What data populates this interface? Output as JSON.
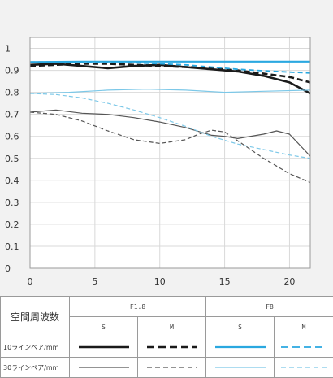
{
  "chart_data": {
    "type": "line",
    "x_ticks": [
      "0",
      "5",
      "10",
      "15",
      "20"
    ],
    "y_ticks": [
      "0",
      "0.1",
      "0.2",
      "0.3",
      "0.4",
      "0.5",
      "0.6",
      "0.7",
      "0.8",
      "0.9",
      "1"
    ],
    "xlim": [
      0,
      21.6
    ],
    "ylim": [
      0,
      1.05
    ],
    "grid": true,
    "series": [
      {
        "aperture": "F1.8",
        "mode": "S",
        "freq": "10",
        "color": "#1a1a1a",
        "dash": "",
        "width": 2.6,
        "points": [
          [
            0,
            0.925
          ],
          [
            2,
            0.93
          ],
          [
            4,
            0.92
          ],
          [
            6,
            0.91
          ],
          [
            8,
            0.92
          ],
          [
            10,
            0.925
          ],
          [
            12,
            0.915
          ],
          [
            14,
            0.905
          ],
          [
            16,
            0.895
          ],
          [
            18,
            0.875
          ],
          [
            20,
            0.845
          ],
          [
            21.6,
            0.795
          ]
        ]
      },
      {
        "aperture": "F1.8",
        "mode": "M",
        "freq": "10",
        "color": "#1a1a1a",
        "dash": "7,4",
        "width": 2.6,
        "points": [
          [
            0,
            0.92
          ],
          [
            2,
            0.925
          ],
          [
            4,
            0.93
          ],
          [
            6,
            0.93
          ],
          [
            8,
            0.925
          ],
          [
            10,
            0.92
          ],
          [
            12,
            0.915
          ],
          [
            14,
            0.91
          ],
          [
            16,
            0.9
          ],
          [
            18,
            0.885
          ],
          [
            20,
            0.87
          ],
          [
            21.6,
            0.845
          ]
        ]
      },
      {
        "aperture": "F8",
        "mode": "S",
        "freq": "10",
        "color": "#2aa8e0",
        "dash": "",
        "width": 2.2,
        "points": [
          [
            0,
            0.938
          ],
          [
            4,
            0.94
          ],
          [
            8,
            0.94
          ],
          [
            12,
            0.94
          ],
          [
            16,
            0.94
          ],
          [
            20,
            0.94
          ],
          [
            21.6,
            0.94
          ]
        ]
      },
      {
        "aperture": "F8",
        "mode": "M",
        "freq": "10",
        "color": "#2aa8e0",
        "dash": "6,4",
        "width": 1.8,
        "points": [
          [
            0,
            0.938
          ],
          [
            4,
            0.938
          ],
          [
            8,
            0.935
          ],
          [
            12,
            0.925
          ],
          [
            14,
            0.915
          ],
          [
            16,
            0.905
          ],
          [
            18,
            0.898
          ],
          [
            20,
            0.892
          ],
          [
            21.6,
            0.888
          ]
        ]
      },
      {
        "aperture": "F1.8",
        "mode": "S",
        "freq": "30",
        "color": "#555555",
        "dash": "",
        "width": 1.2,
        "points": [
          [
            0,
            0.71
          ],
          [
            2,
            0.72
          ],
          [
            4,
            0.705
          ],
          [
            6,
            0.7
          ],
          [
            8,
            0.685
          ],
          [
            10,
            0.665
          ],
          [
            12,
            0.64
          ],
          [
            14,
            0.605
          ],
          [
            15,
            0.6
          ],
          [
            16,
            0.59
          ],
          [
            18,
            0.61
          ],
          [
            19,
            0.625
          ],
          [
            20,
            0.61
          ],
          [
            21.6,
            0.51
          ]
        ]
      },
      {
        "aperture": "F1.8",
        "mode": "M",
        "freq": "30",
        "color": "#555555",
        "dash": "5,3",
        "width": 1.2,
        "points": [
          [
            0,
            0.71
          ],
          [
            2,
            0.7
          ],
          [
            4,
            0.67
          ],
          [
            6,
            0.625
          ],
          [
            8,
            0.585
          ],
          [
            10,
            0.568
          ],
          [
            12,
            0.585
          ],
          [
            13,
            0.61
          ],
          [
            14,
            0.628
          ],
          [
            15,
            0.62
          ],
          [
            16,
            0.58
          ],
          [
            18,
            0.5
          ],
          [
            20,
            0.43
          ],
          [
            21.6,
            0.39
          ]
        ]
      },
      {
        "aperture": "F8",
        "mode": "S",
        "freq": "30",
        "color": "#7cc8e8",
        "dash": "",
        "width": 1.2,
        "points": [
          [
            0,
            0.795
          ],
          [
            3,
            0.8
          ],
          [
            6,
            0.81
          ],
          [
            9,
            0.815
          ],
          [
            12,
            0.81
          ],
          [
            15,
            0.8
          ],
          [
            18,
            0.805
          ],
          [
            21.6,
            0.81
          ]
        ]
      },
      {
        "aperture": "F8",
        "mode": "M",
        "freq": "30",
        "color": "#7cc8e8",
        "dash": "5,3",
        "width": 1.2,
        "points": [
          [
            0,
            0.795
          ],
          [
            2,
            0.79
          ],
          [
            4,
            0.775
          ],
          [
            6,
            0.75
          ],
          [
            8,
            0.72
          ],
          [
            10,
            0.685
          ],
          [
            12,
            0.645
          ],
          [
            14,
            0.6
          ],
          [
            16,
            0.565
          ],
          [
            18,
            0.54
          ],
          [
            20,
            0.515
          ],
          [
            21.6,
            0.5
          ]
        ]
      }
    ]
  },
  "legend": {
    "title": "空間周波数",
    "apertures": [
      "F1.8",
      "F8"
    ],
    "modes": [
      "S",
      "M",
      "S",
      "M"
    ],
    "rows": [
      {
        "label": "10ラインペア/mm",
        "samples": [
          {
            "color": "#1a1a1a",
            "dash": "",
            "width": 2.6
          },
          {
            "color": "#1a1a1a",
            "dash": "9,5",
            "width": 2.6
          },
          {
            "color": "#2aa8e0",
            "dash": "",
            "width": 2.2
          },
          {
            "color": "#2aa8e0",
            "dash": "9,5",
            "width": 1.8
          }
        ]
      },
      {
        "label": "30ラインペア/mm",
        "samples": [
          {
            "color": "#555555",
            "dash": "",
            "width": 1.2
          },
          {
            "color": "#555555",
            "dash": "6,4",
            "width": 1.2
          },
          {
            "color": "#7cc8e8",
            "dash": "",
            "width": 1.2
          },
          {
            "color": "#7cc8e8",
            "dash": "6,4",
            "width": 1.2
          }
        ]
      }
    ]
  }
}
